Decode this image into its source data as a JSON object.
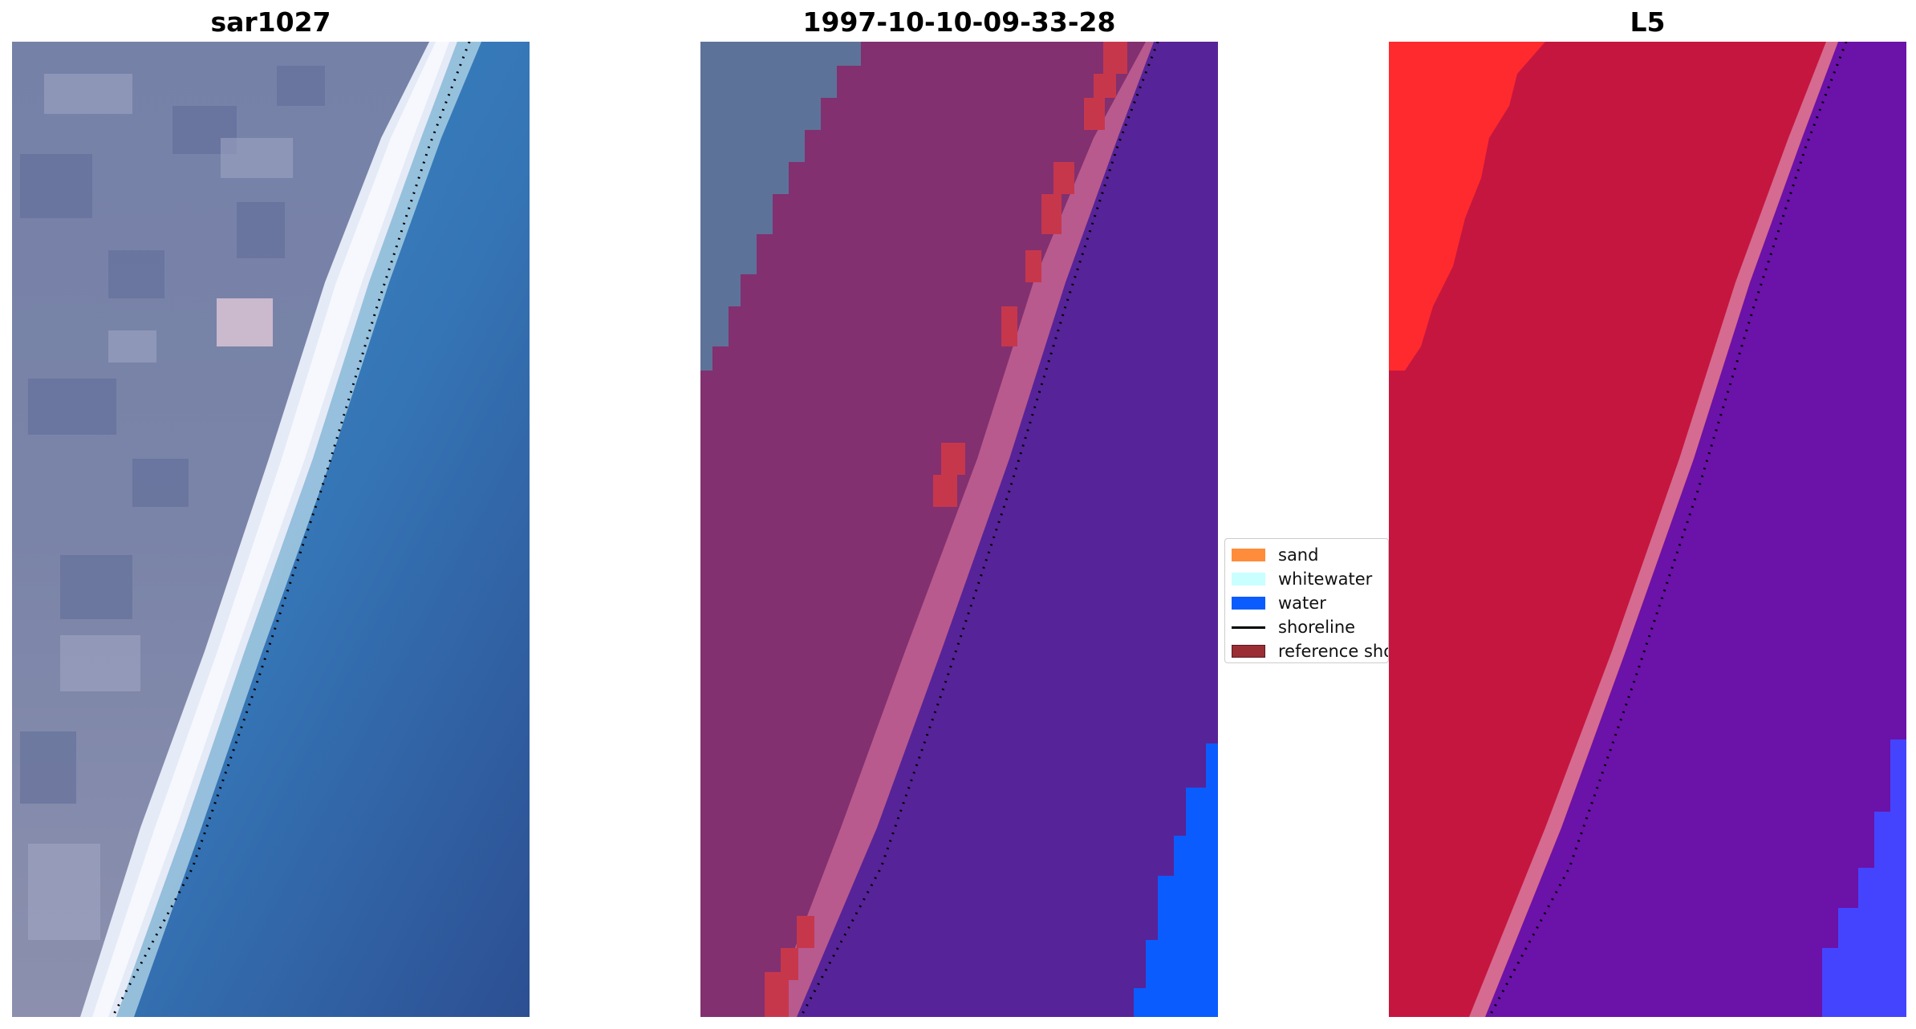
{
  "panels": [
    {
      "title": "sar1027"
    },
    {
      "title": "1997-10-10-09-33-28"
    },
    {
      "title": "L5"
    }
  ],
  "legend": {
    "items": [
      {
        "label": "sand",
        "color": "#ff8c3a",
        "kind": "patch"
      },
      {
        "label": "whitewater",
        "color": "#c9ffff",
        "kind": "patch"
      },
      {
        "label": "water",
        "color": "#0a5cff",
        "kind": "patch"
      },
      {
        "label": "shoreline",
        "color": "#000000",
        "kind": "line"
      },
      {
        "label": "reference shoreline",
        "color": "#9b2d35",
        "kind": "patch"
      }
    ]
  },
  "colors": {
    "land_gray": "#7e87aa",
    "beach_white": "#e6ecf6",
    "water_blue": "#3a86bf",
    "water_deep": "#2d5196",
    "sand_overlay": "#803070",
    "reference_band": "#c63a4e",
    "water_overlay": "#572398",
    "water_pixels": "#0a5cff",
    "l5_land": "#c81a42",
    "l5_bright": "#ff2a2e",
    "l5_water": "#6b12a8",
    "l5_blue": "#4444ff"
  }
}
